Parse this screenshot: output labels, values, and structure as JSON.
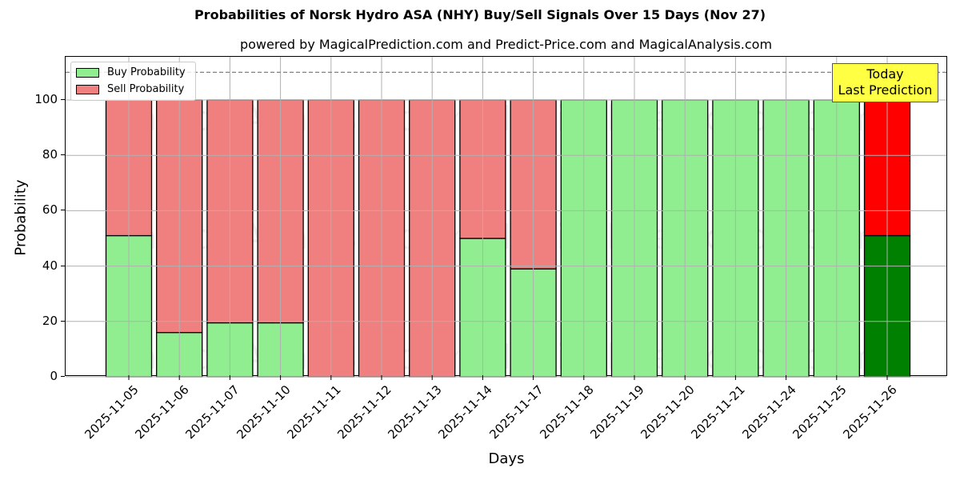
{
  "header": {
    "title": "Probabilities of Norsk Hydro ASA (NHY) Buy/Sell Signals Over 15 Days (Nov 27)",
    "subtitle": "powered by MagicalPrediction.com and Predict-Price.com and MagicalAnalysis.com"
  },
  "legend": {
    "buy_label": "Buy Probability",
    "sell_label": "Sell Probability"
  },
  "annotation": {
    "line1": "Today",
    "line2": "Last Prediction"
  },
  "watermarks": [
    "MagicalAnalysis.com",
    "MagicalPrediction.com"
  ],
  "colors": {
    "buy": "#90ee90",
    "sell": "#f08080",
    "today_buy": "#008000",
    "today_sell": "#ff0000",
    "annotation_bg": "#ffff44"
  },
  "chart_data": {
    "type": "bar",
    "stacked": true,
    "title": "Probabilities of Norsk Hydro ASA (NHY) Buy/Sell Signals Over 15 Days (Nov 27)",
    "subtitle": "powered by MagicalPrediction.com and Predict-Price.com and MagicalAnalysis.com",
    "xlabel": "Days",
    "ylabel": "Probability",
    "ylim": [
      0,
      115
    ],
    "yticks": [
      0,
      20,
      40,
      60,
      80,
      100
    ],
    "grid": true,
    "legend_position": "upper left",
    "reference_line": {
      "y": 110,
      "style": "dashed",
      "color": "#808080"
    },
    "categories": [
      "2025-11-05",
      "2025-11-06",
      "2025-11-07",
      "2025-11-10",
      "2025-11-11",
      "2025-11-12",
      "2025-11-13",
      "2025-11-14",
      "2025-11-17",
      "2025-11-18",
      "2025-11-19",
      "2025-11-20",
      "2025-11-21",
      "2025-11-24",
      "2025-11-25",
      "2025-11-26"
    ],
    "series": [
      {
        "name": "Buy Probability",
        "values": [
          51,
          16,
          19.5,
          19.5,
          0,
          0,
          0,
          50,
          39,
          100,
          100,
          100,
          100,
          100,
          100,
          51
        ]
      },
      {
        "name": "Sell Probability",
        "values": [
          49,
          84,
          80.5,
          80.5,
          100,
          100,
          100,
          50,
          61,
          0,
          0,
          0,
          0,
          0,
          0,
          49
        ]
      }
    ],
    "highlight": {
      "category": "2025-11-26",
      "label": "Today Last Prediction"
    }
  }
}
